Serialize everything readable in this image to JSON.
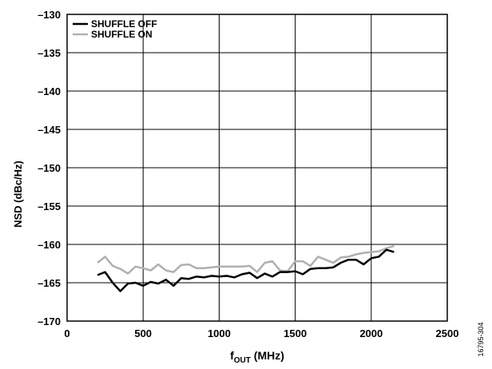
{
  "chart_data": {
    "type": "line",
    "xlabel_main": "f",
    "xlabel_sub": "OUT",
    "xlabel_unit": " (MHz)",
    "ylabel": "NSD (dBc/Hz)",
    "xlim": [
      0,
      2500
    ],
    "ylim": [
      -170,
      -130
    ],
    "x_ticks": [
      0,
      500,
      1000,
      1500,
      2000,
      2500
    ],
    "y_ticks": [
      -130,
      -135,
      -140,
      -145,
      -150,
      -155,
      -160,
      -165,
      -170
    ],
    "x_tick_labels": [
      "0",
      "500",
      "1000",
      "1500",
      "2000",
      "2500"
    ],
    "y_tick_labels": [
      "–130",
      "–135",
      "–140",
      "–145",
      "–150",
      "–155",
      "–160",
      "–165",
      "–170"
    ],
    "grid": true,
    "legend_position": "top-left",
    "series": [
      {
        "name": "SHUFFLE OFF",
        "color": "#000000",
        "x": [
          200,
          250,
          300,
          350,
          400,
          450,
          500,
          550,
          600,
          650,
          700,
          750,
          800,
          850,
          900,
          950,
          1000,
          1050,
          1100,
          1150,
          1200,
          1250,
          1300,
          1350,
          1400,
          1450,
          1500,
          1550,
          1600,
          1650,
          1700,
          1750,
          1800,
          1850,
          1900,
          1950,
          2000,
          2050,
          2100,
          2150
        ],
        "y": [
          -164.0,
          -163.6,
          -165.0,
          -166.1,
          -165.1,
          -165.0,
          -165.4,
          -164.9,
          -165.1,
          -164.6,
          -165.4,
          -164.4,
          -164.5,
          -164.2,
          -164.3,
          -164.1,
          -164.2,
          -164.1,
          -164.3,
          -163.9,
          -163.7,
          -164.4,
          -163.8,
          -164.2,
          -163.6,
          -163.6,
          -163.5,
          -163.9,
          -163.2,
          -163.1,
          -163.1,
          -163.0,
          -162.4,
          -162.0,
          -162.0,
          -162.6,
          -161.8,
          -161.6,
          -160.7,
          -161.0
        ]
      },
      {
        "name": "SHUFFLE ON",
        "color": "#b0b0b0",
        "x": [
          200,
          250,
          300,
          350,
          400,
          450,
          500,
          550,
          600,
          650,
          700,
          750,
          800,
          850,
          900,
          950,
          1000,
          1050,
          1100,
          1150,
          1200,
          1250,
          1300,
          1350,
          1400,
          1450,
          1500,
          1550,
          1600,
          1650,
          1700,
          1750,
          1800,
          1850,
          1900,
          1950,
          2000,
          2050,
          2100,
          2150
        ],
        "y": [
          -162.4,
          -161.6,
          -162.8,
          -163.2,
          -163.8,
          -162.9,
          -163.1,
          -163.4,
          -162.6,
          -163.4,
          -163.6,
          -162.7,
          -162.6,
          -163.1,
          -163.1,
          -163.0,
          -162.9,
          -162.9,
          -162.9,
          -162.9,
          -162.8,
          -163.6,
          -162.4,
          -162.2,
          -163.4,
          -163.5,
          -162.2,
          -162.2,
          -162.8,
          -161.6,
          -162.0,
          -162.4,
          -161.7,
          -161.6,
          -161.3,
          -161.1,
          -161.0,
          -160.9,
          -160.5,
          -160.2
        ]
      }
    ]
  },
  "figure_id": "16795-304"
}
